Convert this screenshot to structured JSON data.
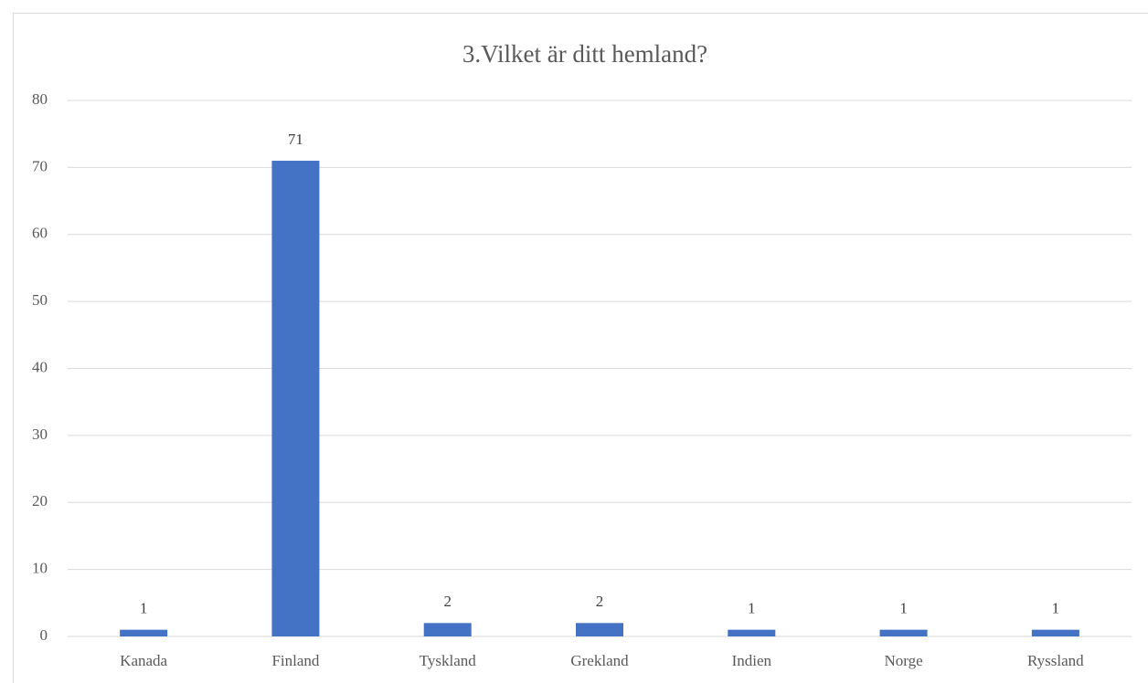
{
  "chart_data": {
    "type": "bar",
    "title": "3.Vilket är ditt hemland?",
    "categories": [
      "Kanada",
      "Finland",
      "Tyskland",
      "Grekland",
      "Indien",
      "Norge",
      "Ryssland"
    ],
    "values": [
      1,
      71,
      2,
      2,
      1,
      1,
      1
    ],
    "color": "#4472c4",
    "ylim": [
      0,
      80
    ],
    "yticks": [
      0,
      10,
      20,
      30,
      40,
      50,
      60,
      70,
      80
    ],
    "grid": true
  }
}
